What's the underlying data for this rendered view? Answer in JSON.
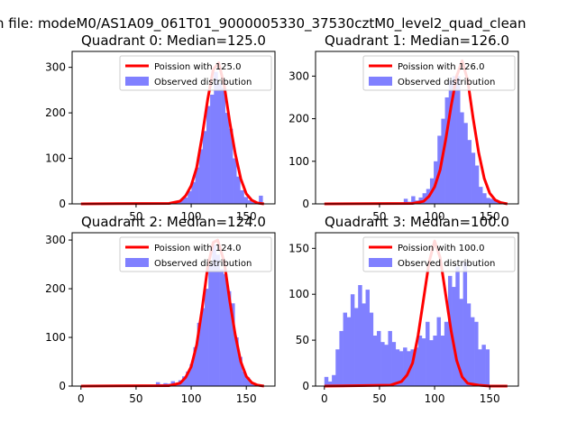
{
  "suptitle": "n file: modeM0/AS1A09_061T01_9000005330_37530cztM0_level2_quad_clean",
  "colors": {
    "curve": "#ff0000",
    "bars": "#8080ff",
    "axis": "#000000"
  },
  "chart_data": [
    {
      "type": "bar",
      "title": "Quadrant 0: Median=125.0",
      "xlim": [
        -8,
        176
      ],
      "ylim": [
        0,
        335
      ],
      "xticks": [
        50,
        100,
        150
      ],
      "yticks": [
        0,
        100,
        200,
        300
      ],
      "legend": [
        "Poission with 125.0",
        "Observed distribution"
      ],
      "legend_position": "upper right",
      "bin_width": 3.4,
      "bin_starts": [
        73,
        76.4,
        79.8,
        83.2,
        86.6,
        90,
        93.4,
        96.8,
        100.2,
        103.6,
        107,
        110.4,
        113.8,
        117.2,
        120.6,
        124,
        127.4,
        130.8,
        134.2,
        137.6,
        141,
        144.4,
        147.8,
        151.2,
        154.6,
        158,
        161.4
      ],
      "values": [
        2,
        3,
        3,
        5,
        6,
        10,
        14,
        28,
        48,
        80,
        120,
        160,
        215,
        240,
        290,
        265,
        255,
        200,
        165,
        100,
        60,
        30,
        15,
        8,
        4,
        3,
        18
      ],
      "curve": {
        "name": "Poission with 125.0",
        "x": [
          0,
          80,
          90,
          95,
          100,
          105,
          110,
          115,
          120,
          125,
          130,
          135,
          140,
          145,
          150,
          155,
          160,
          166
        ],
        "y": [
          0,
          1,
          6,
          18,
          40,
          80,
          150,
          230,
          295,
          310,
          260,
          180,
          110,
          55,
          22,
          8,
          2,
          0
        ]
      }
    },
    {
      "type": "bar",
      "title": "Quadrant 1: Median=126.0",
      "xlim": [
        -8,
        176
      ],
      "ylim": [
        0,
        358
      ],
      "xticks": [
        50,
        100,
        150
      ],
      "yticks": [
        0,
        100,
        200,
        300
      ],
      "legend": [
        "Poission with 126.0",
        "Observed distribution"
      ],
      "legend_position": "upper right",
      "bin_width": 3.4,
      "bin_starts": [
        72,
        75.4,
        78.8,
        82.2,
        85.6,
        89,
        92.4,
        95.8,
        99.2,
        102.6,
        106,
        109.4,
        112.8,
        116.2,
        119.6,
        123,
        126.4,
        129.8,
        133.2,
        136.6,
        140,
        143.4,
        146.8,
        150.2,
        153.6,
        157,
        160.4
      ],
      "values": [
        12,
        5,
        18,
        8,
        15,
        25,
        35,
        60,
        100,
        160,
        200,
        250,
        290,
        300,
        300,
        215,
        190,
        150,
        120,
        90,
        40,
        25,
        14,
        12,
        10,
        6,
        4
      ],
      "curve": {
        "name": "Poission with 126.0",
        "x": [
          0,
          80,
          90,
          95,
          100,
          105,
          110,
          115,
          120,
          125,
          130,
          135,
          140,
          145,
          150,
          155,
          160,
          166
        ],
        "y": [
          0,
          1,
          6,
          18,
          40,
          80,
          150,
          230,
          300,
          336,
          290,
          200,
          120,
          60,
          25,
          9,
          3,
          0
        ]
      }
    },
    {
      "type": "bar",
      "title": "Quadrant 2: Median=124.0",
      "xlim": [
        -8,
        176
      ],
      "ylim": [
        0,
        315
      ],
      "xticks": [
        0,
        50,
        100,
        150
      ],
      "yticks": [
        0,
        100,
        200,
        300
      ],
      "legend": [
        "Poission with 124.0",
        "Observed distribution"
      ],
      "legend_position": "upper right",
      "bin_width": 3.4,
      "bin_starts": [
        68,
        71.4,
        74.8,
        78.2,
        81.6,
        85,
        88.4,
        91.8,
        95.2,
        98.6,
        102,
        105.4,
        108.8,
        112.2,
        115.6,
        119,
        122.4,
        125.8,
        129.2,
        132.6,
        136,
        139.4,
        142.8,
        146.2,
        149.6,
        153,
        156.4
      ],
      "values": [
        8,
        4,
        6,
        5,
        10,
        6,
        12,
        20,
        30,
        45,
        80,
        130,
        160,
        200,
        250,
        290,
        270,
        240,
        230,
        195,
        170,
        100,
        60,
        30,
        18,
        6,
        3
      ],
      "curve": {
        "name": "Poission with 124.0",
        "x": [
          0,
          80,
          90,
          95,
          100,
          105,
          110,
          115,
          120,
          124,
          130,
          135,
          140,
          145,
          150,
          155,
          160,
          166
        ],
        "y": [
          0,
          1,
          6,
          18,
          40,
          85,
          160,
          245,
          295,
          300,
          255,
          175,
          105,
          50,
          20,
          7,
          2,
          0
        ]
      }
    },
    {
      "type": "bar",
      "title": "Quadrant 3: Median=100.0",
      "xlim": [
        -8,
        176
      ],
      "ylim": [
        0,
        167
      ],
      "xticks": [
        0,
        50,
        100,
        150
      ],
      "yticks": [
        0,
        50,
        100,
        150
      ],
      "legend": [
        "Poission with 100.0",
        "Observed distribution"
      ],
      "legend_position": "upper right",
      "bin_width": 3.4,
      "bin_starts": [
        0,
        3.4,
        6.8,
        10.2,
        13.6,
        17,
        20.4,
        23.8,
        27.2,
        30.6,
        34,
        37.4,
        40.8,
        44.2,
        47.6,
        51,
        54.4,
        57.8,
        61.2,
        64.6,
        68,
        71.4,
        74.8,
        78.2,
        81.6,
        85,
        88.4,
        91.8,
        95.2,
        98.6,
        102,
        105.4,
        108.8,
        112.2,
        115.6,
        119,
        122.4,
        125.8,
        129.2,
        132.6,
        136,
        139.4,
        142.8,
        146.2
      ],
      "values": [
        10,
        5,
        12,
        40,
        60,
        80,
        75,
        100,
        85,
        110,
        90,
        105,
        80,
        55,
        60,
        48,
        45,
        60,
        48,
        40,
        38,
        42,
        38,
        40,
        42,
        55,
        52,
        70,
        50,
        55,
        75,
        55,
        70,
        120,
        108,
        130,
        95,
        135,
        90,
        75,
        70,
        40,
        45,
        40
      ],
      "curve": {
        "name": "Poission with 100.0",
        "x": [
          0,
          60,
          70,
          75,
          80,
          85,
          90,
          95,
          100,
          105,
          110,
          115,
          120,
          125,
          130,
          140,
          150,
          166
        ],
        "y": [
          0,
          1,
          5,
          12,
          25,
          55,
          95,
          135,
          158,
          140,
          100,
          60,
          28,
          10,
          3,
          1,
          0,
          0
        ]
      }
    }
  ]
}
